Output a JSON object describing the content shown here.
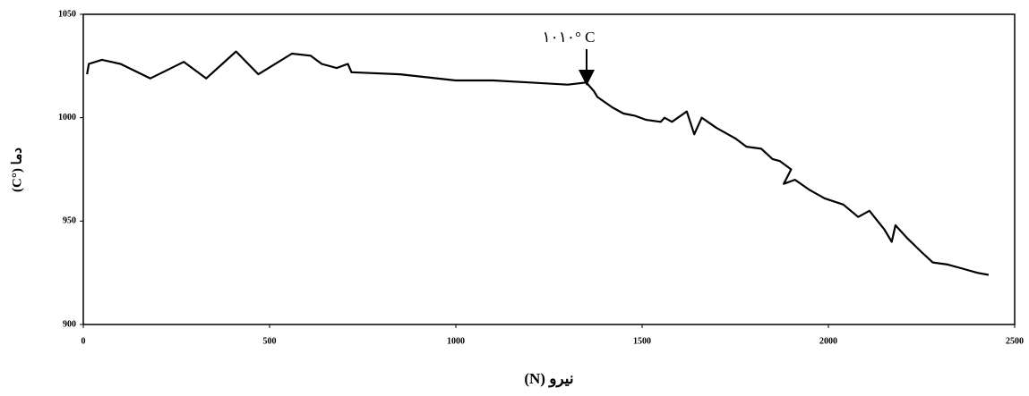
{
  "chart_data": {
    "type": "line",
    "annotation": "١٠١٠° C",
    "x_label": "نیرو (N)",
    "y_label": "دما (°C)",
    "x": [
      10,
      15,
      50,
      100,
      180,
      270,
      330,
      410,
      470,
      560,
      610,
      640,
      680,
      710,
      720,
      850,
      1000,
      1100,
      1200,
      1300,
      1350,
      1360,
      1370,
      1380,
      1420,
      1450,
      1480,
      1510,
      1550,
      1560,
      1580,
      1620,
      1640,
      1660,
      1700,
      1750,
      1780,
      1820,
      1850,
      1870,
      1900,
      1880,
      1910,
      1950,
      1990,
      2040,
      2080,
      2110,
      2150,
      2170,
      2180,
      2210,
      2250,
      2280,
      2320,
      2360,
      2400,
      2430
    ],
    "series": [
      {
        "color": "#000000",
        "values": [
          1021,
          1026,
          1028,
          1026,
          1019,
          1027,
          1019,
          1032,
          1021,
          1031,
          1030,
          1026,
          1024,
          1026,
          1022,
          1021,
          1018,
          1018,
          1017,
          1016,
          1017,
          1015,
          1013,
          1010,
          1005,
          1002,
          1001,
          999,
          998,
          1000,
          998,
          1003,
          992,
          1000,
          995,
          990,
          986,
          985,
          980,
          979,
          975,
          968,
          970,
          965,
          961,
          958,
          952,
          955,
          946,
          940,
          948,
          942,
          935,
          930,
          929,
          927,
          925,
          924
        ]
      }
    ],
    "xlim": [
      0,
      2500
    ],
    "xticks": [
      0,
      500,
      1000,
      1500,
      2000,
      2500
    ],
    "ylim": [
      900,
      1050
    ],
    "yticks": [
      900,
      950,
      1000,
      1050
    ]
  }
}
